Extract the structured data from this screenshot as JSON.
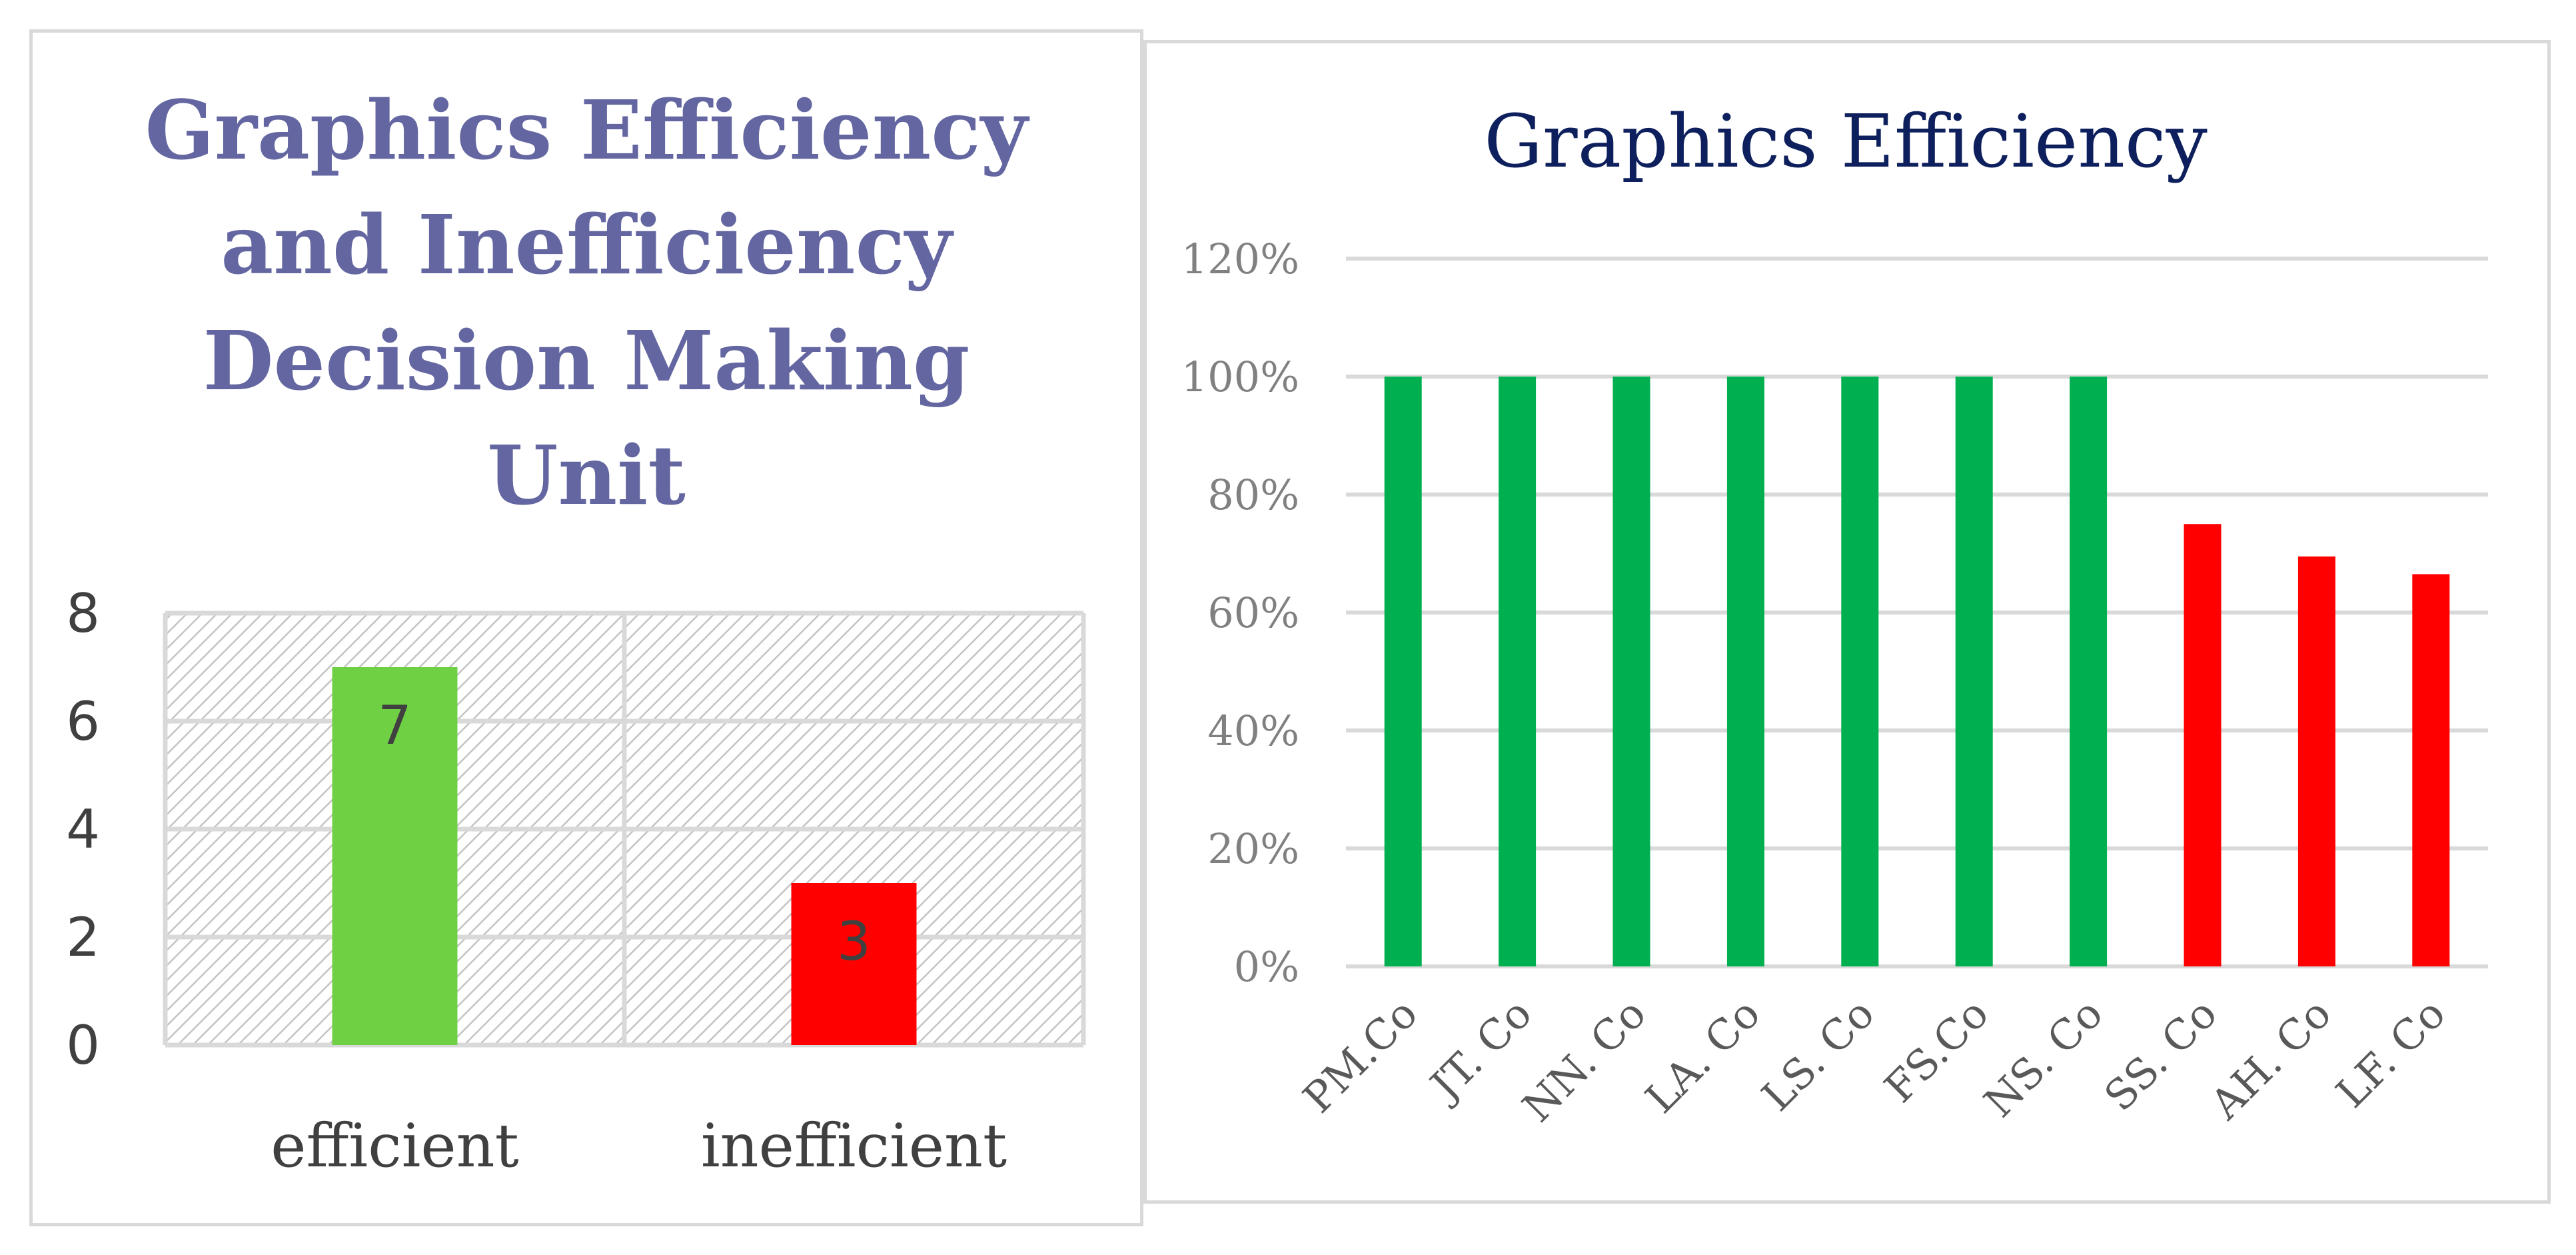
{
  "chart_data": [
    {
      "type": "bar",
      "title": "Graphics Efficiency and Inefficiency Decision Making Unit",
      "title_lines": [
        "Graphics Efficiency",
        "and Inefficiency",
        "Decision Making",
        "Unit"
      ],
      "categories": [
        "efficient",
        "inefficient"
      ],
      "values": [
        7,
        3
      ],
      "data_labels": [
        "7",
        "3"
      ],
      "bar_colors": [
        "#70d044",
        "#ff0000"
      ],
      "ylim": [
        0,
        8
      ],
      "yticks": [
        0,
        2,
        4,
        6,
        8
      ],
      "ytick_labels": [
        "0",
        "2",
        "4",
        "6",
        "8"
      ],
      "grid": true,
      "plot_area_pattern": "hatched",
      "legend": "none"
    },
    {
      "type": "bar",
      "title": "Graphics Efficiency",
      "categories": [
        "PM.Co",
        "JT. Co",
        "NN. Co",
        "LA. Co",
        "LS. Co",
        "FS.Co",
        "NS. Co",
        "SS. Co",
        "AH. Co",
        "LF. Co"
      ],
      "values": [
        100,
        100,
        100,
        100,
        100,
        100,
        100,
        75,
        69.5,
        66.5
      ],
      "bar_colors": [
        "#00b050",
        "#00b050",
        "#00b050",
        "#00b050",
        "#00b050",
        "#00b050",
        "#00b050",
        "#ff0000",
        "#ff0000",
        "#ff0000"
      ],
      "ylim": [
        0,
        120
      ],
      "yticks": [
        0,
        20,
        40,
        60,
        80,
        100,
        120
      ],
      "ytick_labels": [
        "0%",
        "20%",
        "40%",
        "60%",
        "80%",
        "100%",
        "120%"
      ],
      "grid": true,
      "legend": "none"
    }
  ]
}
